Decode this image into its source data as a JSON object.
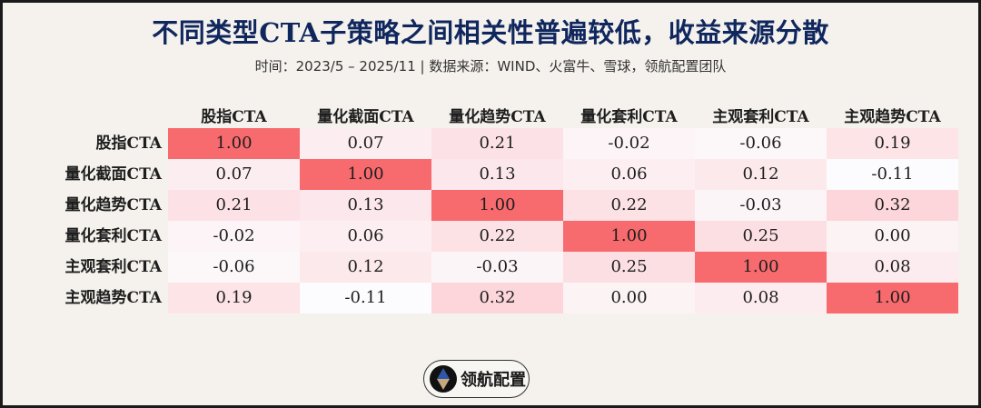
{
  "title": "不同类型CTA子策略之间相关性普遍较低，收益来源分散",
  "subtitle": "时间：2023/5 – 2025/11 | 数据来源：WIND、火富牛、雪球，领航配置团队",
  "logo": {
    "text": "领航配置",
    "icon": "compass-diamond-icon"
  },
  "chart_data": {
    "type": "heatmap",
    "title": "不同类型CTA子策略之间相关性普遍较低，收益来源分散",
    "subtitle": "时间：2023/5 – 2025/11 | 数据来源：WIND、火富牛、雪球，领航配置团队",
    "x_labels": [
      "股指CTA",
      "量化截面CTA",
      "量化趋势CTA",
      "量化套利CTA",
      "主观套利CTA",
      "主观趋势CTA"
    ],
    "y_labels": [
      "股指CTA",
      "量化截面CTA",
      "量化趋势CTA",
      "量化套利CTA",
      "主观套利CTA",
      "主观趋势CTA"
    ],
    "values": [
      [
        1.0,
        0.07,
        0.21,
        -0.02,
        -0.06,
        0.19
      ],
      [
        0.07,
        1.0,
        0.13,
        0.06,
        0.12,
        -0.11
      ],
      [
        0.21,
        0.13,
        1.0,
        0.22,
        -0.03,
        0.32
      ],
      [
        -0.02,
        0.06,
        0.22,
        1.0,
        0.25,
        0.0
      ],
      [
        -0.06,
        0.12,
        -0.03,
        0.25,
        1.0,
        0.08
      ],
      [
        0.19,
        -0.11,
        0.32,
        0.0,
        0.08,
        1.0
      ]
    ],
    "display_values": [
      [
        "1.00",
        "0.07",
        "0.21",
        "-0.02",
        "-0.06",
        "0.19"
      ],
      [
        "0.07",
        "1.00",
        "0.13",
        "0.06",
        "0.12",
        "-0.11"
      ],
      [
        "0.21",
        "0.13",
        "1.00",
        "0.22",
        "-0.03",
        "0.32"
      ],
      [
        "-0.02",
        "0.06",
        "0.22",
        "1.00",
        "0.25",
        "0.00"
      ],
      [
        "-0.06",
        "0.12",
        "-0.03",
        "0.25",
        "1.00",
        "0.08"
      ],
      [
        "0.19",
        "-0.11",
        "0.32",
        "0.00",
        "0.08",
        "1.00"
      ]
    ],
    "colormap": {
      "low": "#fcfbfd",
      "mid": "#fcdde1",
      "high": "#f76a6e",
      "range": [
        -0.11,
        1.0
      ]
    },
    "legend": "none",
    "grid": false
  },
  "colors": {
    "background": "#f5f2ed",
    "title": "#10275e",
    "border": "#1a1a1a"
  }
}
